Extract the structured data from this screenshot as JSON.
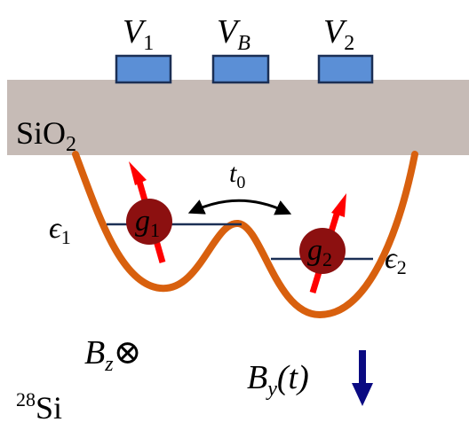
{
  "gates": [
    {
      "symbol": "V",
      "subscript": "1"
    },
    {
      "symbol": "V",
      "subscript": "B"
    },
    {
      "symbol": "V",
      "subscript": "2"
    }
  ],
  "oxide": {
    "text": "SiO",
    "subscript": "2"
  },
  "tunneling": {
    "symbol": "t",
    "subscript": "0"
  },
  "levels": [
    {
      "symbol": "ϵ",
      "subscript": "1"
    },
    {
      "symbol": "ϵ",
      "subscript": "2"
    }
  ],
  "dots": [
    {
      "symbol": "g",
      "subscript": "1"
    },
    {
      "symbol": "g",
      "subscript": "2"
    }
  ],
  "fields": {
    "bz": {
      "symbol": "B",
      "subscript": "z",
      "suffix": "⊗"
    },
    "by": {
      "symbol": "B",
      "subscript": "y",
      "suffix": "(t)"
    }
  },
  "substrate": {
    "superscript": "28",
    "text": "Si"
  }
}
